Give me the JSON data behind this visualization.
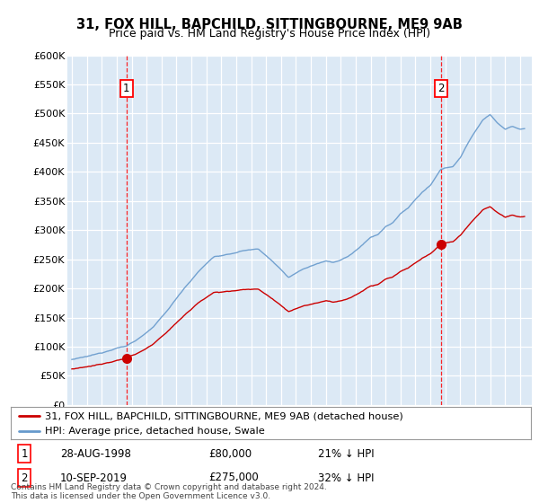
{
  "title": "31, FOX HILL, BAPCHILD, SITTINGBOURNE, ME9 9AB",
  "subtitle": "Price paid vs. HM Land Registry's House Price Index (HPI)",
  "background_color": "#ffffff",
  "plot_bg_color": "#dce9f5",
  "ylim": [
    0,
    600000
  ],
  "yticks": [
    0,
    50000,
    100000,
    150000,
    200000,
    250000,
    300000,
    350000,
    400000,
    450000,
    500000,
    550000,
    600000
  ],
  "ytick_labels": [
    "£0",
    "£50K",
    "£100K",
    "£150K",
    "£200K",
    "£250K",
    "£300K",
    "£350K",
    "£400K",
    "£450K",
    "£500K",
    "£550K",
    "£600K"
  ],
  "xlim_start": 1994.7,
  "xlim_end": 2025.8,
  "sale1_x": 1998.65,
  "sale1_y": 80000,
  "sale1_label": "1",
  "sale1_date": "28-AUG-1998",
  "sale1_price": "£80,000",
  "sale1_hpi": "21% ↓ HPI",
  "sale2_x": 2019.69,
  "sale2_y": 275000,
  "sale2_label": "2",
  "sale2_date": "10-SEP-2019",
  "sale2_price": "£275,000",
  "sale2_hpi": "32% ↓ HPI",
  "red_line_color": "#cc0000",
  "blue_line_color": "#6699cc",
  "legend_label_red": "31, FOX HILL, BAPCHILD, SITTINGBOURNE, ME9 9AB (detached house)",
  "legend_label_blue": "HPI: Average price, detached house, Swale",
  "footnote": "Contains HM Land Registry data © Crown copyright and database right 2024.\nThis data is licensed under the Open Government Licence v3.0."
}
